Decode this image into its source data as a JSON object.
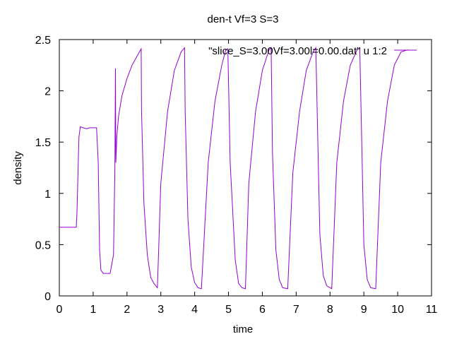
{
  "chart_data": {
    "type": "line",
    "title": "den-t Vf=3 S=3",
    "xlabel": "time",
    "ylabel": "density",
    "xlim": [
      0,
      11
    ],
    "ylim": [
      0,
      2.5
    ],
    "xticks": [
      0,
      1,
      2,
      3,
      4,
      5,
      6,
      7,
      8,
      9,
      10,
      11
    ],
    "yticks": [
      0,
      0.5,
      1,
      1.5,
      2,
      2.5
    ],
    "xtick_labels": [
      "0",
      "1",
      "2",
      "3",
      "4",
      "5",
      "6",
      "7",
      "8",
      "9",
      "10",
      "11"
    ],
    "ytick_labels": [
      "0",
      "0.5",
      "1",
      "1.5",
      "2",
      "2.5"
    ],
    "grid": false,
    "legend_position": "top-right",
    "series": [
      {
        "name": "\"slice_S=3.00Vf=3.00l=0.00.dat\" u 1:2",
        "color": "#9400d3",
        "x": [
          0.0,
          0.3,
          0.5,
          0.52,
          0.58,
          0.62,
          0.7,
          0.8,
          0.9,
          1.0,
          1.1,
          1.15,
          1.19,
          1.23,
          1.3,
          1.4,
          1.5,
          1.6,
          1.64,
          1.66,
          1.67,
          1.7,
          1.75,
          1.85,
          2.0,
          2.15,
          2.3,
          2.42,
          2.43,
          2.5,
          2.6,
          2.7,
          2.8,
          2.9,
          3.0,
          3.2,
          3.4,
          3.6,
          3.7,
          3.72,
          3.8,
          3.9,
          4.0,
          4.1,
          4.2,
          4.4,
          4.6,
          4.8,
          4.92,
          4.98,
          5.05,
          5.2,
          5.3,
          5.4,
          5.5,
          5.6,
          5.8,
          6.0,
          6.2,
          6.26,
          6.3,
          6.4,
          6.5,
          6.6,
          6.75,
          6.9,
          7.1,
          7.3,
          7.5,
          7.58,
          7.62,
          7.7,
          7.8,
          7.9,
          8.05,
          8.2,
          8.4,
          8.6,
          8.8,
          8.88,
          8.92,
          9.0,
          9.1,
          9.2,
          9.35,
          9.5,
          9.7,
          9.9,
          10.1,
          10.3
        ],
        "y": [
          0.67,
          0.67,
          0.67,
          0.8,
          1.55,
          1.65,
          1.64,
          1.63,
          1.64,
          1.64,
          1.64,
          1.3,
          0.45,
          0.25,
          0.22,
          0.22,
          0.22,
          0.4,
          1.2,
          2.22,
          1.3,
          1.55,
          1.75,
          1.95,
          2.12,
          2.25,
          2.34,
          2.41,
          1.8,
          0.9,
          0.4,
          0.18,
          0.12,
          0.08,
          1.1,
          1.8,
          2.2,
          2.38,
          2.42,
          1.8,
          0.75,
          0.28,
          0.13,
          0.08,
          0.07,
          1.3,
          1.9,
          2.25,
          2.4,
          2.41,
          1.3,
          0.35,
          0.12,
          0.08,
          0.07,
          1.1,
          1.8,
          2.2,
          2.4,
          2.42,
          1.4,
          0.45,
          0.16,
          0.08,
          0.07,
          1.2,
          1.8,
          2.2,
          2.38,
          2.42,
          1.8,
          0.6,
          0.2,
          0.1,
          0.07,
          1.3,
          1.9,
          2.25,
          2.4,
          2.42,
          1.8,
          0.5,
          0.16,
          0.08,
          0.07,
          1.3,
          1.9,
          2.25,
          2.38,
          2.4
        ]
      }
    ]
  }
}
